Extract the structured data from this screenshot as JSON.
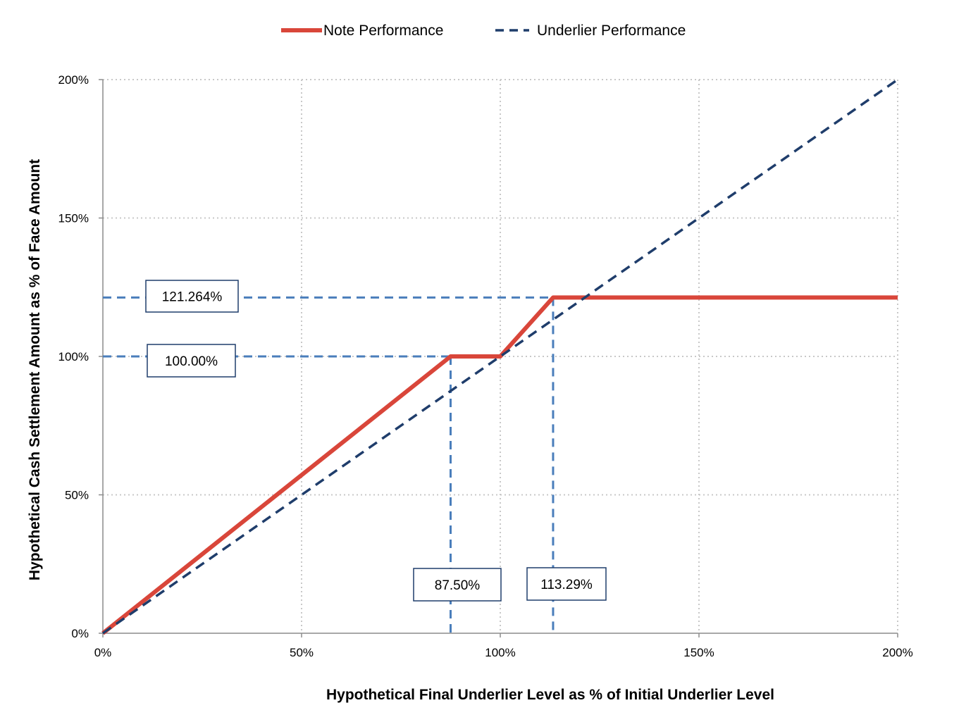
{
  "chart_data": {
    "type": "line",
    "title": "",
    "xlabel": "Hypothetical Final Underlier Level as % of Initial Underlier Level",
    "ylabel": "Hypothetical Cash Settlement Amount as % of Face Amount",
    "xlim": [
      0,
      200
    ],
    "ylim": [
      0,
      200
    ],
    "x_ticks": [
      0,
      50,
      100,
      150,
      200
    ],
    "x_tick_labels": [
      "0%",
      "50%",
      "100%",
      "150%",
      "200%"
    ],
    "y_ticks": [
      0,
      50,
      100,
      150,
      200
    ],
    "y_tick_labels": [
      "0%",
      "50%",
      "100%",
      "150%",
      "200%"
    ],
    "grid": true,
    "legend_position": "top",
    "series": [
      {
        "name": "Note Performance",
        "color": "#d9463a",
        "style": "solid",
        "points": [
          [
            0,
            0
          ],
          [
            87.5,
            100
          ],
          [
            100,
            100
          ],
          [
            113.29,
            121.264
          ],
          [
            200,
            121.264
          ]
        ]
      },
      {
        "name": "Underlier Performance",
        "color": "#1f3d6b",
        "style": "dashed",
        "points": [
          [
            0,
            0
          ],
          [
            200,
            200
          ]
        ]
      }
    ],
    "reference_lines": [
      {
        "orientation": "horizontal",
        "value": 121.264,
        "label": "121.264%",
        "color": "#4a7ebb"
      },
      {
        "orientation": "horizontal",
        "value": 100,
        "label": "100.00%",
        "color": "#4a7ebb"
      },
      {
        "orientation": "vertical",
        "value": 87.5,
        "label": "87.50%",
        "color": "#4a7ebb"
      },
      {
        "orientation": "vertical",
        "value": 113.29,
        "label": "113.29%",
        "color": "#4a7ebb"
      }
    ],
    "colors": {
      "grid": "#c8c8c8",
      "axis": "#8c8c8c",
      "box_border": "#1f3d6b"
    }
  }
}
